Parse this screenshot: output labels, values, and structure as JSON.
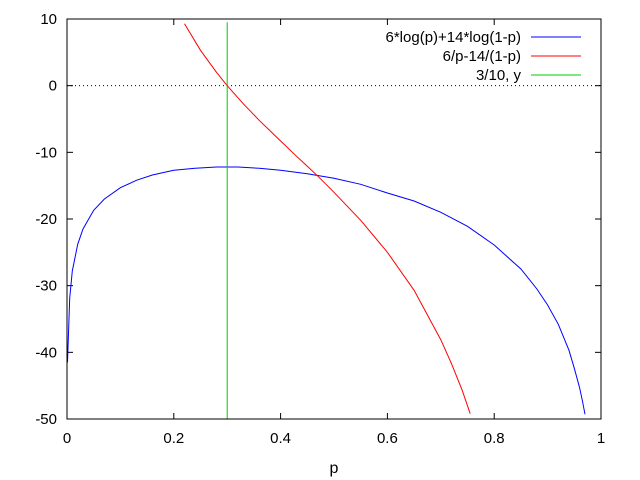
{
  "chart_data": {
    "type": "line",
    "title": "",
    "xlabel": "p",
    "ylabel": "",
    "xlim": [
      0,
      1
    ],
    "ylim": [
      -50,
      10
    ],
    "x_ticks": [
      0,
      0.2,
      0.4,
      0.6,
      0.8,
      1
    ],
    "x_tick_labels": [
      "0",
      "0.2",
      "0.4",
      "0.6",
      "0.8",
      "1"
    ],
    "y_ticks": [
      10,
      0,
      -10,
      -20,
      -30,
      -40,
      -50
    ],
    "y_tick_labels": [
      "10",
      "0",
      "-10",
      "-20",
      "-30",
      "-40",
      "-50"
    ],
    "grid": false,
    "zero_line": "dotted",
    "legend_position": "top-right",
    "series": [
      {
        "name": "6*log(p)+14*log(1-p)",
        "color": "#0000ff",
        "x": [
          0.001,
          0.005,
          0.01,
          0.02,
          0.03,
          0.05,
          0.07,
          0.1,
          0.13,
          0.16,
          0.2,
          0.24,
          0.28,
          0.3,
          0.32,
          0.36,
          0.4,
          0.45,
          0.5,
          0.55,
          0.6,
          0.65,
          0.7,
          0.75,
          0.8,
          0.85,
          0.88,
          0.9,
          0.92,
          0.94,
          0.95,
          0.96,
          0.965,
          0.97
        ],
        "y": [
          -41.5,
          -31.9,
          -27.8,
          -23.8,
          -21.5,
          -18.7,
          -17.0,
          -15.3,
          -14.2,
          -13.4,
          -12.7,
          -12.4,
          -12.2,
          -12.2,
          -12.2,
          -12.4,
          -12.7,
          -13.2,
          -13.9,
          -14.8,
          -16.1,
          -17.3,
          -19.0,
          -21.1,
          -23.9,
          -27.5,
          -30.5,
          -32.9,
          -35.8,
          -39.7,
          -42.4,
          -45.3,
          -47.2,
          -49.3
        ]
      },
      {
        "name": "6/p-14/(1-p)",
        "color": "#ff0000",
        "x": [
          0.22,
          0.25,
          0.28,
          0.3,
          0.33,
          0.36,
          0.4,
          0.43,
          0.45,
          0.47,
          0.5,
          0.55,
          0.6,
          0.65,
          0.7,
          0.72,
          0.74,
          0.755
        ],
        "y": [
          9.3,
          5.3,
          2.0,
          0.0,
          -2.7,
          -5.2,
          -8.3,
          -10.6,
          -12.1,
          -13.6,
          -16.0,
          -20.2,
          -25.0,
          -30.7,
          -38.1,
          -41.7,
          -45.7,
          -49.2
        ]
      },
      {
        "name": "3/10, y",
        "color": "#00cc00",
        "x": [
          0.3,
          0.3
        ],
        "y": [
          -50,
          9.5
        ]
      }
    ]
  }
}
